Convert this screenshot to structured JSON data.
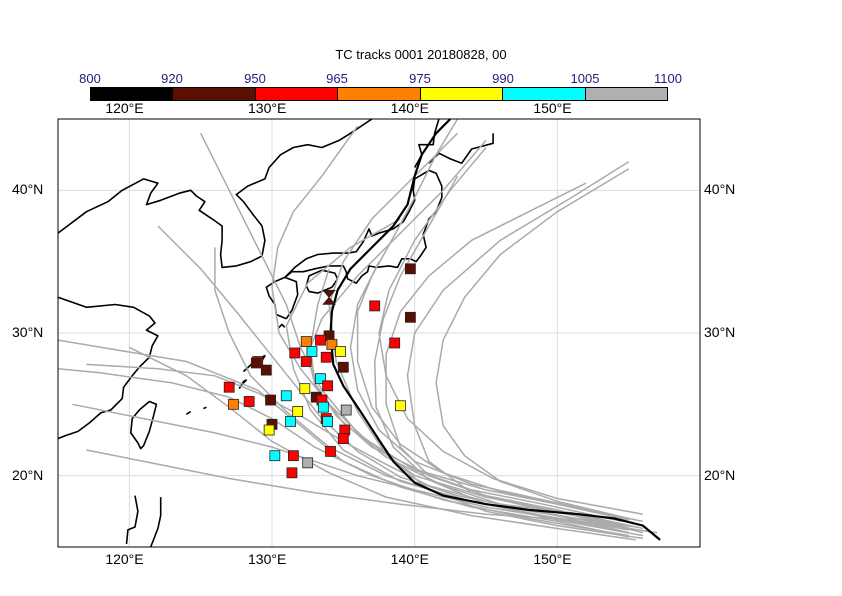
{
  "title": "TC tracks  0001 20180828, 00",
  "colorbar": {
    "levels": [
      "800",
      "920",
      "950",
      "965",
      "975",
      "990",
      "1005",
      "1100"
    ],
    "colors": [
      "#000000",
      "#5a0f00",
      "#ff0000",
      "#ff7f00",
      "#ffff00",
      "#00ffff",
      "#b0b0b0"
    ]
  },
  "axes": {
    "lon_ticks": [
      "120°E",
      "130°E",
      "140°E",
      "150°E"
    ],
    "lat_ticks": [
      "40°N",
      "30°N",
      "20°N"
    ],
    "lon_range": [
      115,
      160
    ],
    "lat_range": [
      15,
      45
    ]
  },
  "legend_color_names": {
    "track_color": "#aaaaaa",
    "mean_track_color": "#000000",
    "coast_color": "#000000"
  },
  "chart_data": {
    "type": "map",
    "mean_track": [
      [
        157.2,
        15.5
      ],
      [
        156,
        16.5
      ],
      [
        154,
        17
      ],
      [
        151.5,
        17.3
      ],
      [
        148,
        17.6
      ],
      [
        145,
        18
      ],
      [
        142,
        18.6
      ],
      [
        140,
        19.5
      ],
      [
        138.5,
        21
      ],
      [
        137.5,
        22.5
      ],
      [
        136.2,
        24.5
      ],
      [
        135,
        26.3
      ],
      [
        134.3,
        27.8
      ],
      [
        134.1,
        30
      ],
      [
        134.2,
        31.5
      ],
      [
        134.6,
        33
      ],
      [
        135.5,
        34.5
      ],
      [
        137,
        36
      ],
      [
        138.5,
        37.5
      ],
      [
        139.5,
        39
      ],
      [
        140,
        41
      ],
      [
        140.5,
        42.5
      ],
      [
        141.5,
        44
      ],
      [
        142.5,
        45
      ]
    ],
    "tracks": [
      [
        [
          155,
          16
        ],
        [
          150,
          17
        ],
        [
          145,
          17.8
        ],
        [
          140,
          19
        ],
        [
          136,
          20
        ],
        [
          133,
          21
        ],
        [
          130,
          22
        ],
        [
          126,
          23
        ],
        [
          121,
          24
        ],
        [
          116,
          25
        ]
      ],
      [
        [
          155,
          15.7
        ],
        [
          150,
          16.8
        ],
        [
          144,
          17.8
        ],
        [
          139,
          19.2
        ],
        [
          135,
          21
        ],
        [
          132,
          23.5
        ],
        [
          129,
          26
        ],
        [
          124,
          28
        ],
        [
          118,
          29
        ],
        [
          115,
          29.5
        ]
      ],
      [
        [
          156,
          16
        ],
        [
          150,
          17.5
        ],
        [
          145,
          18.5
        ],
        [
          140,
          20
        ],
        [
          136,
          23
        ],
        [
          133.5,
          26
        ],
        [
          132,
          29
        ],
        [
          131,
          32
        ],
        [
          129,
          36
        ],
        [
          127,
          40
        ],
        [
          125,
          44
        ]
      ],
      [
        [
          156,
          15.6
        ],
        [
          150,
          16.5
        ],
        [
          145,
          17.5
        ],
        [
          141,
          19
        ],
        [
          138,
          21.5
        ],
        [
          136,
          24.5
        ],
        [
          134.5,
          28
        ],
        [
          134,
          32
        ],
        [
          135,
          35
        ],
        [
          137,
          38
        ],
        [
          140,
          41
        ],
        [
          143,
          44
        ]
      ],
      [
        [
          155.5,
          16.2
        ],
        [
          150,
          17.6
        ],
        [
          145,
          18.6
        ],
        [
          141,
          20
        ],
        [
          139,
          22
        ],
        [
          138,
          25
        ],
        [
          138,
          28.5
        ],
        [
          139,
          31.5
        ],
        [
          141,
          34
        ],
        [
          144,
          36.5
        ],
        [
          148,
          38.5
        ],
        [
          152,
          40.5
        ]
      ],
      [
        [
          155,
          16.5
        ],
        [
          149,
          17.6
        ],
        [
          144,
          18.8
        ],
        [
          141,
          21
        ],
        [
          140,
          23.5
        ],
        [
          139.5,
          27
        ],
        [
          140,
          30
        ],
        [
          142,
          33
        ],
        [
          146,
          36.5
        ],
        [
          151,
          39.5
        ],
        [
          155,
          42
        ]
      ],
      [
        [
          156,
          16.3
        ],
        [
          151,
          17.4
        ],
        [
          146,
          18
        ],
        [
          142,
          19.3
        ],
        [
          138,
          21.3
        ],
        [
          135,
          23.7
        ],
        [
          133,
          26.4
        ],
        [
          132.5,
          28.5
        ],
        [
          133.5,
          31
        ],
        [
          136,
          34
        ],
        [
          139,
          37
        ],
        [
          142,
          40
        ],
        [
          145,
          43.5
        ]
      ],
      [
        [
          155,
          15.8
        ],
        [
          148,
          17
        ],
        [
          142,
          18.3
        ],
        [
          137,
          20
        ],
        [
          133,
          22
        ],
        [
          130,
          24
        ],
        [
          127,
          25.5
        ],
        [
          123,
          26.5
        ],
        [
          118,
          27.2
        ],
        [
          115,
          27.5
        ]
      ],
      [
        [
          154.5,
          16.8
        ],
        [
          149,
          18
        ],
        [
          144,
          19
        ],
        [
          140,
          20.4
        ],
        [
          136.5,
          22.6
        ],
        [
          134,
          25
        ],
        [
          132,
          27.5
        ],
        [
          130.5,
          30
        ],
        [
          130,
          33.2
        ],
        [
          130.4,
          36
        ],
        [
          131.5,
          38.5
        ],
        [
          133.5,
          41
        ],
        [
          136,
          44.5
        ]
      ],
      [
        [
          155,
          16
        ],
        [
          150,
          17.2
        ],
        [
          145,
          18.2
        ],
        [
          141,
          19.3
        ],
        [
          138,
          20.8
        ],
        [
          135,
          22.4
        ],
        [
          132,
          24.2
        ],
        [
          129,
          25.8
        ],
        [
          126,
          27
        ],
        [
          122,
          27.5
        ],
        [
          117,
          27.8
        ]
      ],
      [
        [
          156,
          16.8
        ],
        [
          151,
          17.8
        ],
        [
          146,
          18.9
        ],
        [
          142,
          20.2
        ],
        [
          139,
          22.2
        ],
        [
          137,
          24.8
        ],
        [
          136,
          28
        ],
        [
          136,
          31.5
        ],
        [
          137,
          34
        ],
        [
          138.5,
          36.7
        ],
        [
          140,
          39.5
        ],
        [
          141.5,
          42.5
        ],
        [
          143,
          45
        ]
      ],
      [
        [
          154,
          16.5
        ],
        [
          148,
          17.6
        ],
        [
          143,
          18.6
        ],
        [
          139,
          19.9
        ],
        [
          136,
          21.7
        ],
        [
          133.5,
          24
        ],
        [
          131.5,
          26.5
        ],
        [
          129.5,
          29
        ],
        [
          127.5,
          31.5
        ],
        [
          125,
          34.5
        ],
        [
          122,
          37.5
        ]
      ],
      [
        [
          155,
          17
        ],
        [
          150,
          18.2
        ],
        [
          146,
          19.6
        ],
        [
          143.5,
          21.4
        ],
        [
          142,
          23.5
        ],
        [
          141.5,
          26.5
        ],
        [
          142,
          29.5
        ],
        [
          143.5,
          32.5
        ],
        [
          146,
          35.5
        ],
        [
          150,
          38.5
        ],
        [
          155,
          41.5
        ]
      ],
      [
        [
          157,
          16
        ],
        [
          151,
          16.9
        ],
        [
          145,
          17.3
        ],
        [
          139,
          18
        ],
        [
          133,
          18.8
        ],
        [
          127,
          19.8
        ],
        [
          121,
          21
        ],
        [
          117,
          21.8
        ]
      ],
      [
        [
          155.5,
          16.4
        ],
        [
          150,
          17.2
        ],
        [
          144,
          18.2
        ],
        [
          139,
          19.6
        ],
        [
          135,
          21.8
        ],
        [
          132.7,
          24.6
        ],
        [
          131.5,
          27.5
        ],
        [
          131,
          30.5
        ],
        [
          132.5,
          33.5
        ],
        [
          135.5,
          36
        ],
        [
          139,
          38
        ]
      ],
      [
        [
          156,
          17.3
        ],
        [
          150,
          18.4
        ],
        [
          145.5,
          19.8
        ],
        [
          142,
          21.7
        ],
        [
          139.5,
          24
        ],
        [
          138,
          27
        ],
        [
          137.5,
          30
        ],
        [
          138.2,
          33
        ],
        [
          140,
          36.5
        ],
        [
          142.5,
          40
        ],
        [
          145,
          43
        ]
      ],
      [
        [
          154,
          17.2
        ],
        [
          149,
          18.3
        ],
        [
          144,
          19.4
        ],
        [
          140,
          21
        ],
        [
          137.5,
          23.2
        ],
        [
          136,
          26
        ],
        [
          135.5,
          29
        ],
        [
          136,
          32
        ],
        [
          137.5,
          35
        ]
      ],
      [
        [
          155.5,
          15.5
        ],
        [
          150,
          16.3
        ],
        [
          144,
          17.2
        ],
        [
          138,
          18.5
        ],
        [
          134,
          20.2
        ],
        [
          130,
          22.4
        ],
        [
          127,
          24.8
        ],
        [
          124,
          27
        ],
        [
          120,
          29
        ]
      ],
      [
        [
          155,
          16.9
        ],
        [
          150,
          18
        ],
        [
          145,
          19
        ],
        [
          140.5,
          20.3
        ],
        [
          137,
          22
        ],
        [
          134.5,
          24.2
        ],
        [
          133,
          26.5
        ],
        [
          132.7,
          29
        ],
        [
          133.2,
          32
        ],
        [
          134,
          34.5
        ]
      ],
      [
        [
          156,
          15.8
        ],
        [
          150,
          16.9
        ],
        [
          145,
          18
        ],
        [
          141,
          19.7
        ],
        [
          138.5,
          22
        ],
        [
          137.3,
          24.8
        ],
        [
          137.2,
          28
        ],
        [
          137.8,
          31
        ],
        [
          139,
          34
        ],
        [
          141,
          37.5
        ],
        [
          143,
          41
        ]
      ],
      [
        [
          155,
          16.2
        ],
        [
          149,
          17.2
        ],
        [
          143,
          18.4
        ],
        [
          138,
          20
        ],
        [
          134,
          22
        ],
        [
          131,
          24.5
        ],
        [
          128.5,
          27
        ],
        [
          127,
          30
        ],
        [
          126,
          33
        ],
        [
          126,
          36
        ]
      ]
    ],
    "markers": [
      {
        "lon": 134.0,
        "lat": 32.5,
        "color": "#5a0f00",
        "shape": "hourglass"
      },
      {
        "lon": 139.7,
        "lat": 34.5,
        "color": "#5a0f00"
      },
      {
        "lon": 137.2,
        "lat": 31.9,
        "color": "#ff0000"
      },
      {
        "lon": 139.7,
        "lat": 31.1,
        "color": "#5a0f00"
      },
      {
        "lon": 138.6,
        "lat": 29.3,
        "color": "#ff0000"
      },
      {
        "lon": 139.0,
        "lat": 24.9,
        "color": "#ffff00"
      },
      {
        "lon": 134.0,
        "lat": 29.8,
        "color": "#5a0f00"
      },
      {
        "lon": 132.4,
        "lat": 29.4,
        "color": "#ff7f00"
      },
      {
        "lon": 133.4,
        "lat": 29.5,
        "color": "#ff0000"
      },
      {
        "lon": 134.2,
        "lat": 29.2,
        "color": "#ff7f00"
      },
      {
        "lon": 134.8,
        "lat": 28.7,
        "color": "#ffff00"
      },
      {
        "lon": 131.6,
        "lat": 28.6,
        "color": "#ff0000"
      },
      {
        "lon": 132.8,
        "lat": 28.7,
        "color": "#00ffff"
      },
      {
        "lon": 133.8,
        "lat": 28.3,
        "color": "#ff0000"
      },
      {
        "lon": 132.4,
        "lat": 28.0,
        "color": "#ff0000"
      },
      {
        "lon": 129.0,
        "lat": 28.0,
        "color": "#ff0000"
      },
      {
        "lon": 128.9,
        "lat": 27.9,
        "color": "#5a0f00"
      },
      {
        "lon": 129.6,
        "lat": 27.4,
        "color": "#5a0f00"
      },
      {
        "lon": 135.0,
        "lat": 27.6,
        "color": "#5a0f00"
      },
      {
        "lon": 133.4,
        "lat": 26.8,
        "color": "#00ffff"
      },
      {
        "lon": 132.3,
        "lat": 26.1,
        "color": "#ffff00"
      },
      {
        "lon": 133.9,
        "lat": 26.3,
        "color": "#ff0000"
      },
      {
        "lon": 127.0,
        "lat": 26.2,
        "color": "#ff0000"
      },
      {
        "lon": 131.0,
        "lat": 25.6,
        "color": "#00ffff"
      },
      {
        "lon": 133.1,
        "lat": 25.5,
        "color": "#5a0f00"
      },
      {
        "lon": 133.5,
        "lat": 25.3,
        "color": "#ff0000"
      },
      {
        "lon": 128.4,
        "lat": 25.2,
        "color": "#ff0000"
      },
      {
        "lon": 129.9,
        "lat": 25.3,
        "color": "#5a0f00"
      },
      {
        "lon": 127.3,
        "lat": 25.0,
        "color": "#ff7f00"
      },
      {
        "lon": 133.6,
        "lat": 24.8,
        "color": "#00ffff"
      },
      {
        "lon": 135.2,
        "lat": 24.6,
        "color": "#b0b0b0"
      },
      {
        "lon": 131.8,
        "lat": 24.5,
        "color": "#ffff00"
      },
      {
        "lon": 133.8,
        "lat": 24.0,
        "color": "#ff0000"
      },
      {
        "lon": 131.3,
        "lat": 23.8,
        "color": "#00ffff"
      },
      {
        "lon": 133.9,
        "lat": 23.8,
        "color": "#00ffff"
      },
      {
        "lon": 130.0,
        "lat": 23.6,
        "color": "#5a0f00"
      },
      {
        "lon": 129.8,
        "lat": 23.2,
        "color": "#ffff00"
      },
      {
        "lon": 135.1,
        "lat": 23.2,
        "color": "#ff0000"
      },
      {
        "lon": 135.0,
        "lat": 22.6,
        "color": "#ff0000"
      },
      {
        "lon": 134.1,
        "lat": 21.7,
        "color": "#ff0000"
      },
      {
        "lon": 130.2,
        "lat": 21.4,
        "color": "#00ffff"
      },
      {
        "lon": 131.5,
        "lat": 21.4,
        "color": "#ff0000"
      },
      {
        "lon": 132.5,
        "lat": 20.9,
        "color": "#b0b0b0"
      },
      {
        "lon": 131.4,
        "lat": 20.2,
        "color": "#ff0000"
      }
    ]
  }
}
